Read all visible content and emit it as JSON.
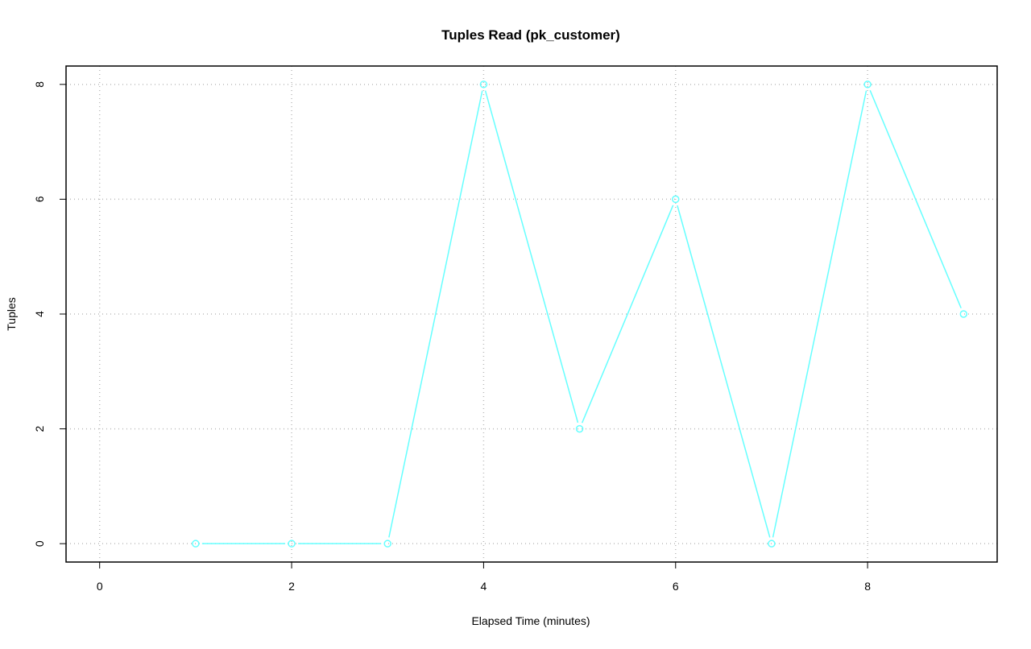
{
  "chart_data": {
    "type": "line",
    "title": "Tuples Read (pk_customer)",
    "xlabel": "Elapsed Time (minutes)",
    "ylabel": "Tuples",
    "xlim": [
      -0.35,
      9.35
    ],
    "ylim": [
      -0.32,
      8.32
    ],
    "xticks": [
      0,
      2,
      4,
      6,
      8
    ],
    "yticks": [
      0,
      2,
      4,
      6,
      8
    ],
    "grid": true,
    "series": [
      {
        "x": [
          1,
          2,
          3,
          4,
          5,
          6,
          7,
          8,
          9
        ],
        "y": [
          0,
          0,
          0,
          8,
          2,
          6,
          0,
          8,
          4
        ],
        "color": "#66ffff",
        "marker": "open-circle"
      }
    ]
  }
}
